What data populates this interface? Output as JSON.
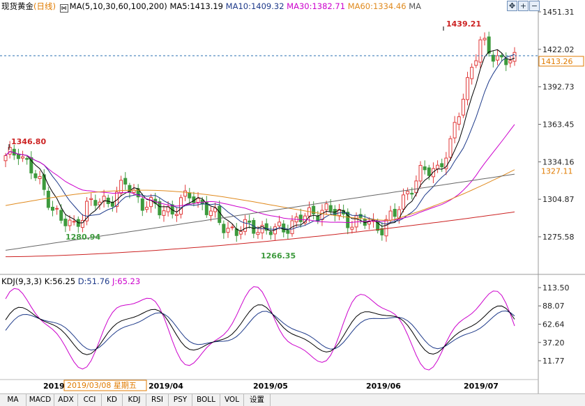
{
  "header": {
    "symbol": "现货黄金",
    "period": "(日线)",
    "ma_params": "MA(5,10,30,60,100,200)",
    "ma_values": [
      {
        "label": "MA5:1413.19",
        "color": "#000000"
      },
      {
        "label": "MA10:1409.32",
        "color": "#1e3a8a"
      },
      {
        "label": "MA30:1382.71",
        "color": "#cc00cc"
      },
      {
        "label": "MA60:1334.46",
        "color": "#e08a1e"
      },
      {
        "label": "MA",
        "color": "#555555"
      }
    ]
  },
  "toolbar_icons": [
    "move-icon",
    "zoom-in-icon",
    "zoom-out-icon"
  ],
  "price_axis": {
    "ticks": [
      "1451.31",
      "1422.02",
      "1392.73",
      "1363.45",
      "1334.16",
      "1304.87",
      "1275.58"
    ],
    "current_price": "1413.26",
    "ma60_tag": "1327.11"
  },
  "annotations": {
    "high_label": "1439.21",
    "left_label": "1346.80",
    "low1_label": "1280.94",
    "low2_label": "1266.35"
  },
  "kdj_legend": {
    "title": "KDJ(9,3,3)",
    "k": "K:56.25",
    "d": "D:51.76",
    "j": "J:65.23"
  },
  "kdj_axis": {
    "ticks": [
      "113.50",
      "88.07",
      "62.64",
      "37.20",
      "11.77"
    ]
  },
  "date_axis": {
    "labels": [
      "2019/",
      "2019/04",
      "2019/05",
      "2019/06",
      "2019/07"
    ],
    "cursor_label": "2019/03/08  星期五"
  },
  "tabs": [
    "MA",
    "MACD",
    "ADX",
    "CCI",
    "KD",
    "KDJ",
    "RSI",
    "PSY",
    "BOLL",
    "VOL",
    "设置"
  ],
  "chart_data": {
    "type": "candlestick",
    "price_ticks": [
      1451.31,
      1422.02,
      1392.73,
      1363.45,
      1334.16,
      1304.87,
      1275.58
    ],
    "kdj_ticks": [
      113.5,
      88.07,
      62.64,
      37.2,
      11.77
    ],
    "colors": {
      "up": "#e03a3a",
      "down": "#3d9a3d",
      "ma5": "#000000",
      "ma10": "#1e3a8a",
      "ma30": "#cc00cc",
      "ma60": "#e08a1e",
      "ma100": "#666666",
      "ma200": "#cc2222",
      "k": "#000000",
      "d": "#1e3a8a",
      "j": "#cc00cc"
    }
  }
}
